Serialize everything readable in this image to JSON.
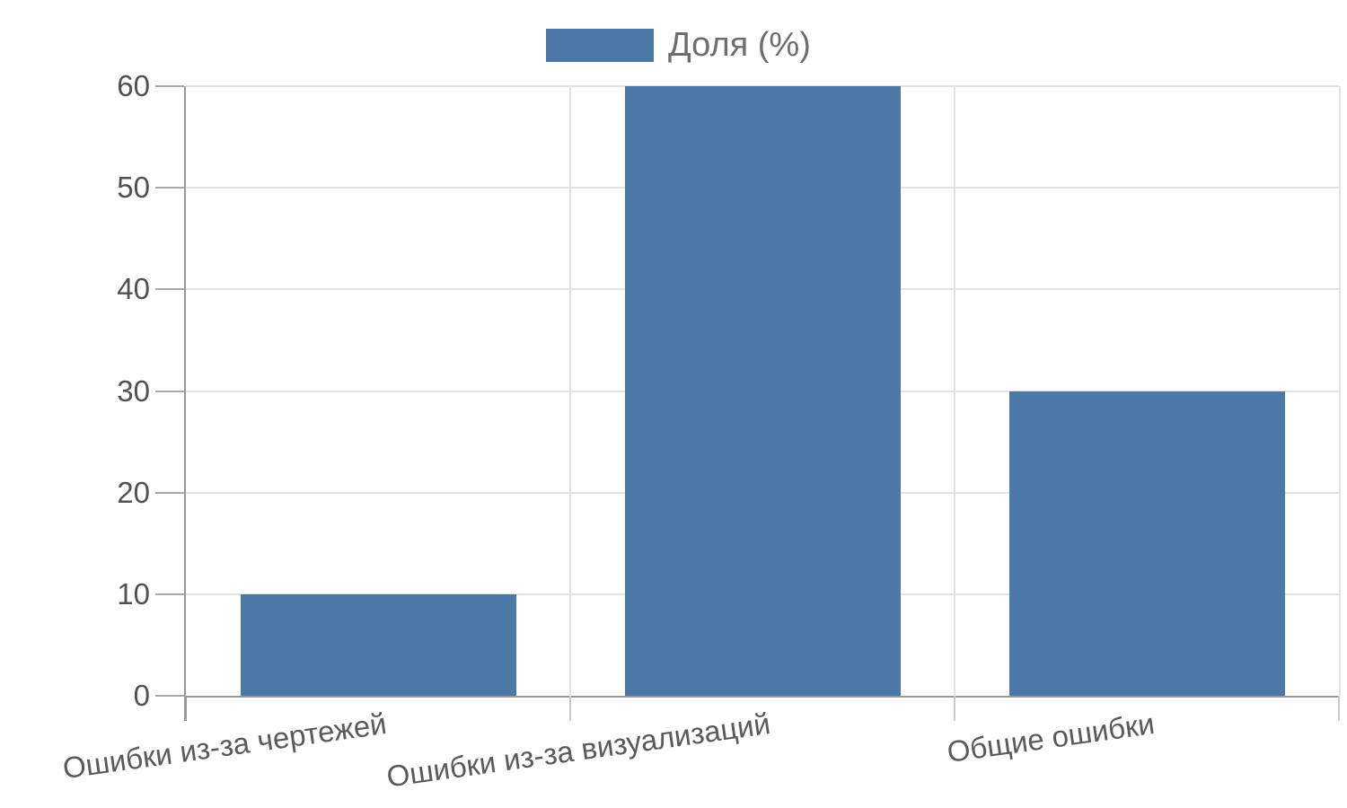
{
  "chart_data": {
    "type": "bar",
    "title": "",
    "xlabel": "",
    "ylabel": "",
    "categories": [
      "Ошибки из-за чертежей",
      "Ошибки из-за визуализаций",
      "Общие ошибки"
    ],
    "series": [
      {
        "name": "Доля (%)",
        "values": [
          10,
          60,
          30
        ]
      }
    ],
    "ylim": [
      0,
      60
    ],
    "yticks": [
      0,
      10,
      20,
      30,
      40,
      50,
      60
    ],
    "grid": true,
    "legend_position": "top",
    "colors": {
      "bar": "#4C78A8",
      "grid": "#e2e2e2",
      "domain": "#999999",
      "y_tick": "#a8a8a8",
      "x_tick": "#c9c9c9",
      "y_label_text": "#515151",
      "x_label_text": "#5a5a5a",
      "legend_text": "#6e6e6e"
    }
  }
}
